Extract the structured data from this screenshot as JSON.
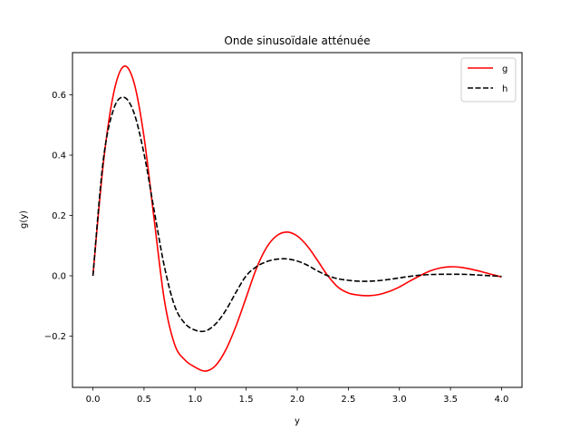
{
  "chart_data": {
    "type": "line",
    "title": "Onde sinusoïdale atténuée",
    "xlabel": "y",
    "ylabel": "g(y)",
    "xlim": [
      -0.2,
      4.2
    ],
    "ylim": [
      -0.37,
      0.74
    ],
    "xticks": [
      0.0,
      0.5,
      1.0,
      1.5,
      2.0,
      2.5,
      3.0,
      3.5,
      4.0
    ],
    "xtick_labels": [
      "0.0",
      "0.5",
      "1.0",
      "1.5",
      "2.0",
      "2.5",
      "3.0",
      "3.5",
      "4.0"
    ],
    "yticks": [
      -0.2,
      0.0,
      0.2,
      0.4,
      0.6
    ],
    "ytick_labels": [
      "−0.2",
      "0.0",
      "0.2",
      "0.4",
      "0.6"
    ],
    "grid": false,
    "legend_position": "top-right",
    "x": [
      0.0,
      0.1,
      0.2,
      0.3,
      0.4,
      0.5,
      0.6,
      0.7,
      0.8,
      0.9,
      1.0,
      1.1,
      1.2,
      1.3,
      1.4,
      1.5,
      1.6,
      1.7,
      1.8,
      1.9,
      2.0,
      2.1,
      2.2,
      2.3,
      2.4,
      2.5,
      2.6,
      2.7,
      2.8,
      2.9,
      3.0,
      3.1,
      3.2,
      3.3,
      3.4,
      3.5,
      3.6,
      3.7,
      3.8,
      3.9,
      4.0
    ],
    "series": [
      {
        "name": "g",
        "color": "#ff0000",
        "line_style": "solid",
        "values": [
          0.0,
          0.367,
          0.601,
          0.694,
          0.643,
          0.461,
          0.185,
          -0.082,
          -0.228,
          -0.279,
          -0.303,
          -0.316,
          -0.298,
          -0.246,
          -0.167,
          -0.072,
          0.024,
          0.094,
          0.133,
          0.145,
          0.132,
          0.098,
          0.05,
          0.0,
          -0.038,
          -0.057,
          -0.064,
          -0.066,
          -0.062,
          -0.052,
          -0.037,
          -0.018,
          0.0,
          0.016,
          0.026,
          0.03,
          0.028,
          0.022,
          0.014,
          0.005,
          -0.004
        ]
      },
      {
        "name": "h",
        "color": "#000000",
        "line_style": "dashed",
        "values": [
          0.0,
          0.38,
          0.55,
          0.592,
          0.542,
          0.405,
          0.215,
          0.03,
          -0.1,
          -0.158,
          -0.18,
          -0.183,
          -0.16,
          -0.115,
          -0.055,
          0.0,
          0.03,
          0.047,
          0.055,
          0.056,
          0.049,
          0.035,
          0.016,
          0.0,
          -0.01,
          -0.015,
          -0.018,
          -0.018,
          -0.016,
          -0.012,
          -0.007,
          -0.002,
          0.002,
          0.004,
          0.005,
          0.005,
          0.005,
          0.004,
          0.002,
          0.0,
          -0.002
        ]
      }
    ]
  }
}
